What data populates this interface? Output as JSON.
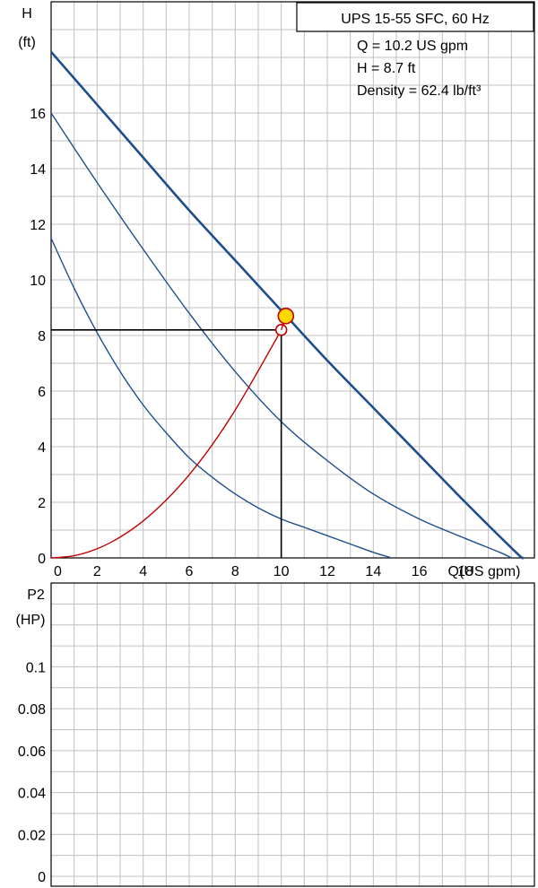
{
  "chart_data": [
    {
      "type": "line",
      "title": "UPS 15-55 SFC, 60 Hz",
      "info_lines": [
        "Q = 10.2 US gpm",
        "H = 8.7 ft",
        "Density = 62.4 lb/ft³"
      ],
      "ylabel": "H",
      "yunit": "(ft)",
      "xlabel": "Q(US gpm)",
      "xlim": [
        0,
        21
      ],
      "ylim": [
        0,
        20
      ],
      "x_ticks": [
        "0",
        "2",
        "4",
        "6",
        "8",
        "10",
        "12",
        "14",
        "16",
        "18"
      ],
      "y_ticks": [
        "0",
        "2",
        "4",
        "6",
        "8",
        "10",
        "12",
        "14",
        "16"
      ],
      "grid": true,
      "series": [
        {
          "color": "#1f4e8c",
          "x": [
            0,
            2,
            4,
            6,
            8,
            10,
            12,
            14,
            16,
            18,
            20.2,
            20.5
          ],
          "y": [
            18.2,
            16.3,
            14.4,
            12.5,
            10.7,
            8.9,
            7.1,
            5.4,
            3.7,
            2.0,
            0.2,
            0
          ]
        },
        {
          "color": "#1f4e8c",
          "x": [
            0,
            2,
            4,
            6,
            8,
            10,
            12,
            14,
            16,
            18,
            19.5,
            20
          ],
          "y": [
            16,
            13.5,
            11.1,
            8.8,
            6.7,
            4.9,
            3.5,
            2.3,
            1.4,
            0.7,
            0.2,
            0
          ]
        },
        {
          "color": "#1f4e8c",
          "x": [
            0,
            1,
            2,
            3,
            4,
            5,
            6,
            7,
            8,
            9,
            10,
            11,
            12,
            13,
            14,
            14.8
          ],
          "y": [
            11.5,
            9.7,
            8.1,
            6.7,
            5.5,
            4.5,
            3.6,
            2.9,
            2.3,
            1.8,
            1.4,
            1.1,
            0.8,
            0.5,
            0.2,
            0
          ]
        },
        {
          "color": "#c00000",
          "x": [
            0,
            1,
            2,
            3,
            4,
            5,
            6,
            7,
            8,
            9,
            10
          ],
          "y": [
            0,
            0.08,
            0.33,
            0.75,
            1.33,
            2.08,
            2.99,
            4.07,
            5.32,
            6.73,
            8.2
          ]
        }
      ],
      "operating_point": {
        "x": 10.2,
        "y": 8.7,
        "color": "#ffd700",
        "edge": "#c00000"
      },
      "system_point": {
        "x": 10,
        "y": 8.2,
        "color": "#c00000"
      }
    },
    {
      "type": "line",
      "ylabel": "P2",
      "yunit": "(HP)",
      "y_ticks": [
        "0",
        "0.02",
        "0.04",
        "0.06",
        "0.08",
        "0.1"
      ],
      "ylim": [
        0,
        0.14
      ],
      "grid": true,
      "series": []
    }
  ]
}
